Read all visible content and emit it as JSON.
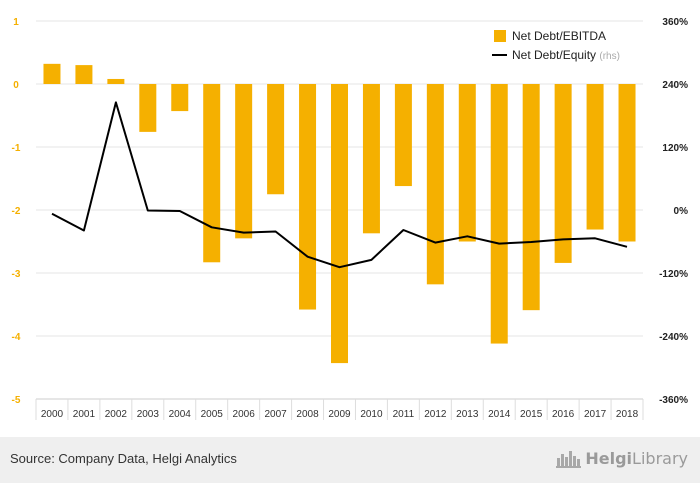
{
  "chart_data": {
    "type": "bar+line",
    "title": "",
    "categories": [
      "2000",
      "2001",
      "2002",
      "2003",
      "2004",
      "2005",
      "2006",
      "2007",
      "2008",
      "2009",
      "2010",
      "2011",
      "2012",
      "2013",
      "2014",
      "2015",
      "2016",
      "2017",
      "2018"
    ],
    "series": [
      {
        "name": "Net Debt/EBITDA",
        "type": "bar",
        "axis": "left",
        "color": "#f5b000",
        "values": [
          0.32,
          0.3,
          0.08,
          -0.76,
          -0.43,
          -2.83,
          -2.45,
          -1.75,
          -3.58,
          -4.43,
          -2.37,
          -1.62,
          -3.18,
          -2.5,
          -4.12,
          -3.59,
          -2.84,
          -2.31,
          -2.5
        ]
      },
      {
        "name": "Net Debt/Equity",
        "name_suffix": "(rhs)",
        "type": "line",
        "axis": "right",
        "color": "#000000",
        "values": [
          -7,
          -39,
          205,
          -1,
          -2,
          -33,
          -43,
          -41,
          -89,
          -109,
          -95,
          -38,
          -62,
          -50,
          -64,
          -61,
          -56,
          -54,
          -70
        ]
      }
    ],
    "y_left": {
      "ylim": [
        -5,
        1
      ],
      "ticks": [
        -5,
        -4,
        -3,
        -2,
        -1,
        0,
        1
      ],
      "tick_labels": [
        "-5",
        "-4",
        "-3",
        "-2",
        "-1",
        "0",
        "1"
      ],
      "tick_color": "#f5b000"
    },
    "y_right": {
      "ylim": [
        -360,
        360
      ],
      "ticks": [
        -360,
        -240,
        -120,
        0,
        120,
        240,
        360
      ],
      "tick_labels": [
        "-360%",
        "-240%",
        "-120%",
        "0%",
        "120%",
        "240%",
        "360%"
      ]
    },
    "grid": true,
    "legend_position": "top-right"
  },
  "footer": {
    "source": "Source: Company Data, Helgi Analytics",
    "brand_part1": "Helgi",
    "brand_part2": "Library"
  },
  "colors": {
    "bar": "#f5b000",
    "line": "#000000",
    "grid": "#e6e6e6",
    "footer_bg": "#efefef"
  },
  "icons": {
    "brand_logo": "city-skyline-icon"
  }
}
